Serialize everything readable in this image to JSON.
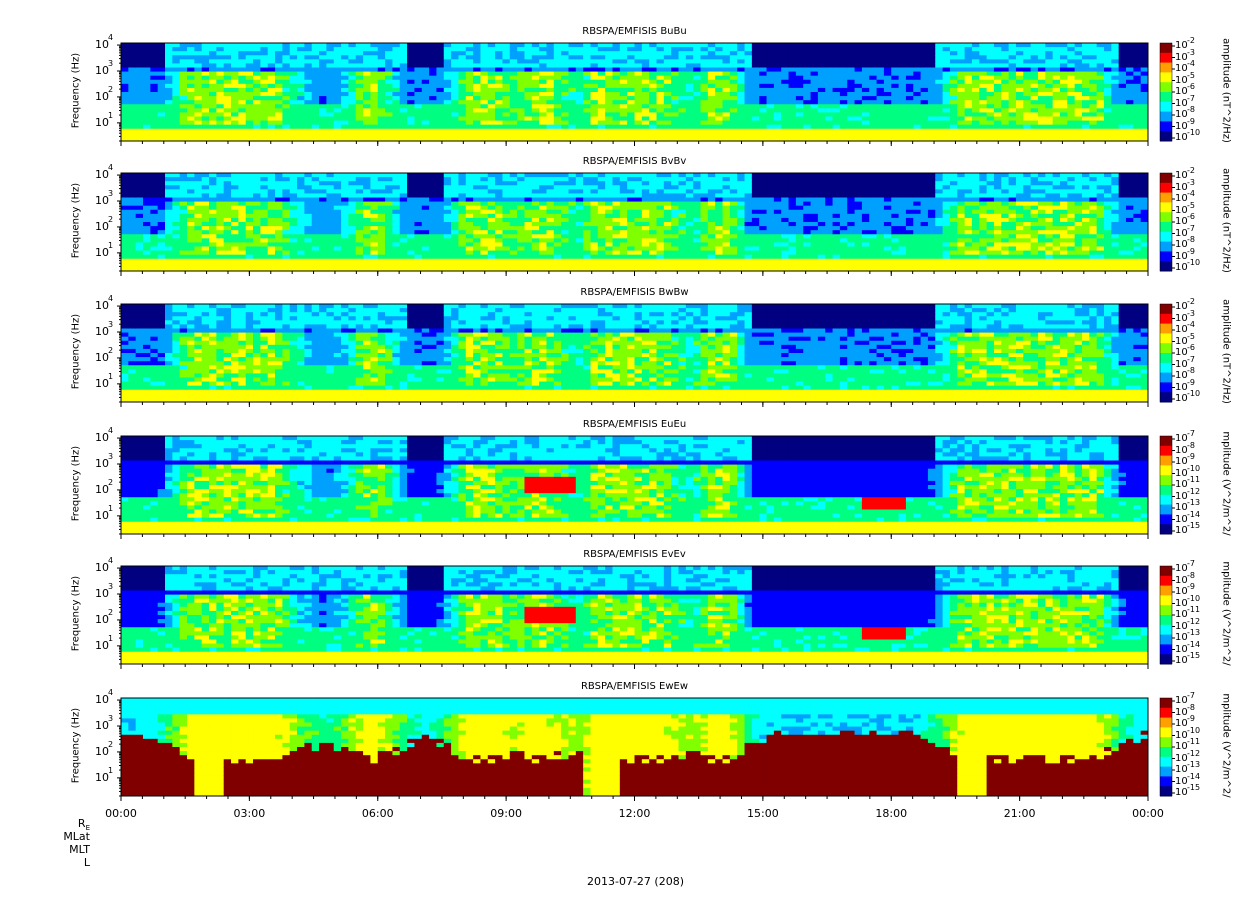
{
  "chart_data": [
    {
      "type": "heatmap",
      "title": "RBSPA/EMFISIS  BuBu",
      "ylabel": "Frequency (Hz)",
      "ylim": [
        2,
        12000
      ],
      "yscale": "log",
      "yticks": [
        "10",
        "10",
        "10",
        "10"
      ],
      "ytick_exps": [
        "1",
        "2",
        "3",
        "4"
      ],
      "zlabel": "amplitude (nT^2/Hz)",
      "zticks": [
        "10",
        "10",
        "10",
        "10",
        "10",
        "10",
        "10",
        "10",
        "10"
      ],
      "ztick_exps": [
        "-2",
        "-3",
        "-4",
        "-5",
        "-6",
        "-7",
        "-8",
        "-9",
        "-10"
      ],
      "zscale": "log",
      "zlim": [
        1e-10,
        0.01
      ],
      "kind": "B"
    },
    {
      "type": "heatmap",
      "title": "RBSPA/EMFISIS  BvBv",
      "ylabel": "Frequency (Hz)",
      "ylim": [
        2,
        12000
      ],
      "yscale": "log",
      "yticks": [
        "10",
        "10",
        "10",
        "10"
      ],
      "ytick_exps": [
        "1",
        "2",
        "3",
        "4"
      ],
      "zlabel": "amplitude (nT^2/Hz)",
      "zticks": [
        "10",
        "10",
        "10",
        "10",
        "10",
        "10",
        "10",
        "10",
        "10"
      ],
      "ztick_exps": [
        "-2",
        "-3",
        "-4",
        "-5",
        "-6",
        "-7",
        "-8",
        "-9",
        "-10"
      ],
      "zscale": "log",
      "zlim": [
        1e-10,
        0.01
      ],
      "kind": "B"
    },
    {
      "type": "heatmap",
      "title": "RBSPA/EMFISIS  BwBw",
      "ylabel": "Frequency (Hz)",
      "ylim": [
        2,
        12000
      ],
      "yscale": "log",
      "yticks": [
        "10",
        "10",
        "10",
        "10"
      ],
      "ytick_exps": [
        "1",
        "2",
        "3",
        "4"
      ],
      "zlabel": "amplitude (nT^2/Hz)",
      "zticks": [
        "10",
        "10",
        "10",
        "10",
        "10",
        "10",
        "10",
        "10",
        "10"
      ],
      "ztick_exps": [
        "-2",
        "-3",
        "-4",
        "-5",
        "-6",
        "-7",
        "-8",
        "-9",
        "-10"
      ],
      "zscale": "log",
      "zlim": [
        1e-10,
        0.01
      ],
      "kind": "Bw"
    },
    {
      "type": "heatmap",
      "title": "RBSPA/EMFISIS  EuEu",
      "ylabel": "Frequency (Hz)",
      "ylim": [
        2,
        12000
      ],
      "yscale": "log",
      "yticks": [
        "10",
        "10",
        "10",
        "10"
      ],
      "ytick_exps": [
        "1",
        "2",
        "3",
        "4"
      ],
      "zlabel": "mplitude (V^2/m^2/",
      "zticks": [
        "10",
        "10",
        "10",
        "10",
        "10",
        "10",
        "10",
        "10",
        "10"
      ],
      "ztick_exps": [
        "-7",
        "-8",
        "-9",
        "-10",
        "-11",
        "-12",
        "-13",
        "-14",
        "-15"
      ],
      "zscale": "log",
      "zlim": [
        1e-15,
        1e-07
      ],
      "kind": "E"
    },
    {
      "type": "heatmap",
      "title": "RBSPA/EMFISIS  EvEv",
      "ylabel": "Frequency (Hz)",
      "ylim": [
        2,
        12000
      ],
      "yscale": "log",
      "yticks": [
        "10",
        "10",
        "10",
        "10"
      ],
      "ytick_exps": [
        "1",
        "2",
        "3",
        "4"
      ],
      "zlabel": "mplitude (V^2/m^2/",
      "zticks": [
        "10",
        "10",
        "10",
        "10",
        "10",
        "10",
        "10",
        "10",
        "10"
      ],
      "ztick_exps": [
        "-7",
        "-8",
        "-9",
        "-10",
        "-11",
        "-12",
        "-13",
        "-14",
        "-15"
      ],
      "zscale": "log",
      "zlim": [
        1e-15,
        1e-07
      ],
      "kind": "E"
    },
    {
      "type": "heatmap",
      "title": "RBSPA/EMFISIS  EwEw",
      "ylabel": "Frequency (Hz)",
      "ylim": [
        2,
        12000
      ],
      "yscale": "log",
      "yticks": [
        "10",
        "10",
        "10",
        "10"
      ],
      "ytick_exps": [
        "1",
        "2",
        "3",
        "4"
      ],
      "zlabel": "mplitude (V^2/m^2/",
      "zticks": [
        "10",
        "10",
        "10",
        "10",
        "10",
        "10",
        "10",
        "10",
        "10"
      ],
      "ztick_exps": [
        "-7",
        "-8",
        "-9",
        "-10",
        "-11",
        "-12",
        "-13",
        "-14",
        "-15"
      ],
      "zscale": "log",
      "zlim": [
        1e-15,
        1e-07
      ],
      "kind": "Ew"
    }
  ],
  "xaxis": {
    "ticks": [
      "00:00",
      "03:00",
      "06:00",
      "09:00",
      "12:00",
      "15:00",
      "18:00",
      "21:00",
      "00:00"
    ],
    "xlim_hours": [
      0,
      24
    ],
    "ephemeris_labels": [
      "R",
      "MLat",
      "MLT",
      "L"
    ],
    "re_subscript": "E",
    "date_label": "2013-07-27 (208)"
  },
  "colors": {
    "colormap": [
      "#000080",
      "#0000ff",
      "#00a0ff",
      "#00ffff",
      "#00ff80",
      "#80ff00",
      "#ffff00",
      "#ffa000",
      "#ff0000",
      "#800000"
    ],
    "background": "#000000"
  }
}
